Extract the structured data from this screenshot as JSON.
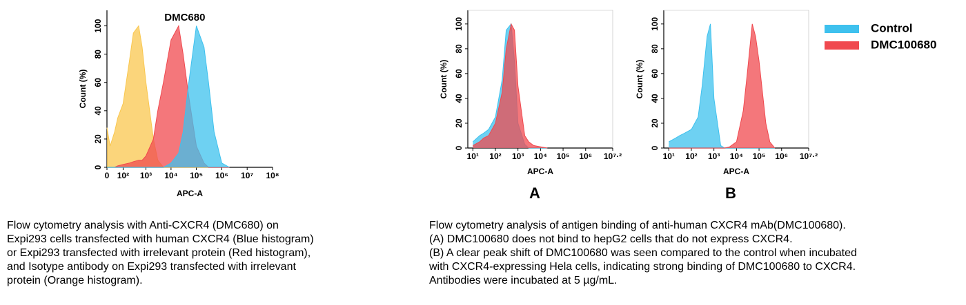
{
  "chart_data": [
    {
      "type": "area",
      "title": "DMC680",
      "xlabel": "APC-A",
      "ylabel": "Count  (%)",
      "xscale": "biexponential",
      "xlim": [
        0,
        100000000
      ],
      "ylim": [
        0,
        111
      ],
      "xticks": [
        {
          "value": 0,
          "label": "0"
        },
        {
          "value": 100,
          "label": "10²"
        },
        {
          "value": 1000,
          "label": "10³"
        },
        {
          "value": 10000,
          "label": "10⁴"
        },
        {
          "value": 100000,
          "label": "10⁵"
        },
        {
          "value": 1000000,
          "label": "10⁶"
        },
        {
          "value": 10000000,
          "label": "10⁷"
        },
        {
          "value": 100000000,
          "label": "10⁸"
        }
      ],
      "yticks": [
        0,
        20,
        40,
        60,
        80,
        100
      ],
      "x": [
        0,
        10,
        30,
        50,
        100,
        200,
        300,
        500,
        700,
        1000,
        2000,
        3000,
        5000,
        10000,
        20000,
        30000,
        50000,
        100000,
        200000,
        300000,
        500000,
        1000000,
        2000000
      ],
      "series": [
        {
          "color": "#f9c74f",
          "values": [
            28,
            15,
            25,
            35,
            45,
            75,
            95,
            100,
            85,
            60,
            20,
            5,
            0,
            0,
            0,
            0,
            0,
            0,
            0,
            0,
            0,
            0,
            0
          ]
        },
        {
          "color": "#f0494f",
          "values": [
            0,
            0,
            0,
            1,
            2,
            3,
            4,
            5,
            5,
            8,
            20,
            40,
            60,
            90,
            100,
            80,
            50,
            15,
            3,
            0,
            0,
            0,
            0
          ]
        },
        {
          "color": "#3ec1ee",
          "values": [
            0,
            0,
            0,
            0,
            0,
            0,
            0,
            0,
            0,
            0,
            0,
            0,
            0,
            3,
            10,
            25,
            60,
            100,
            85,
            60,
            25,
            3,
            0
          ]
        }
      ]
    },
    {
      "type": "area",
      "xlabel": "APC-A",
      "ylabel": "Count  (%)",
      "xscale": "log",
      "panel_label": "A",
      "xlim": [
        6,
        15848931.92
      ],
      "ylim": [
        0,
        111
      ],
      "xticks": [
        {
          "value": 10,
          "label": "10¹"
        },
        {
          "value": 100,
          "label": "10²"
        },
        {
          "value": 1000,
          "label": "10³"
        },
        {
          "value": 10000,
          "label": "10⁴"
        },
        {
          "value": 100000,
          "label": "10⁵"
        },
        {
          "value": 1000000,
          "label": "10⁶"
        },
        {
          "value": 15848931.92,
          "label": "10⁷·²"
        }
      ],
      "yticks": [
        0,
        20,
        40,
        60,
        80,
        100
      ],
      "x": [
        10,
        20,
        30,
        50,
        100,
        200,
        300,
        500,
        700,
        1000,
        2000,
        3000,
        5000,
        10000,
        20000
      ],
      "series": [
        {
          "color": "#3ec1ee",
          "values": [
            5,
            10,
            12,
            15,
            25,
            55,
            95,
            100,
            70,
            20,
            3,
            0,
            0,
            0,
            0
          ]
        },
        {
          "color": "#f0494f",
          "values": [
            2,
            5,
            8,
            10,
            20,
            45,
            80,
            100,
            95,
            50,
            10,
            5,
            2,
            1,
            0
          ]
        }
      ]
    },
    {
      "type": "area",
      "xlabel": "APC-A",
      "ylabel": "Count  (%)",
      "xscale": "log",
      "panel_label": "B",
      "legend": "right",
      "xlim": [
        6,
        15848931.92
      ],
      "ylim": [
        0,
        111
      ],
      "xticks": [
        {
          "value": 10,
          "label": "10¹"
        },
        {
          "value": 100,
          "label": "10²"
        },
        {
          "value": 1000,
          "label": "10³"
        },
        {
          "value": 10000,
          "label": "10⁴"
        },
        {
          "value": 100000,
          "label": "10⁵"
        },
        {
          "value": 1000000,
          "label": "10⁶"
        },
        {
          "value": 15848931.92,
          "label": "10⁷·²"
        }
      ],
      "yticks": [
        0,
        20,
        40,
        60,
        80,
        100
      ],
      "x": [
        10,
        20,
        30,
        50,
        100,
        200,
        300,
        500,
        700,
        1000,
        2000,
        3000,
        5000,
        10000,
        20000,
        30000,
        50000,
        70000,
        100000,
        200000,
        300000,
        500000
      ],
      "series": [
        {
          "name": "Control",
          "color": "#3ec1ee",
          "values": [
            5,
            8,
            10,
            12,
            15,
            25,
            50,
            90,
            100,
            40,
            2,
            0,
            0,
            0,
            0,
            0,
            0,
            0,
            0,
            0,
            0,
            0
          ]
        },
        {
          "name": "DMC100680",
          "color": "#f0494f",
          "values": [
            0,
            0,
            0,
            0,
            0,
            0,
            0,
            0,
            0,
            0,
            0,
            0,
            1,
            5,
            30,
            60,
            100,
            90,
            70,
            20,
            5,
            0
          ]
        }
      ]
    }
  ],
  "captions": [
    [
      "Flow cytometry analysis with Anti-CXCR4 (DMC680) on",
      "Expi293 cells transfected with human CXCR4 (Blue histogram)",
      "or Expi293 transfected with irrelevant protein (Red histogram),",
      "and Isotype antibody on Expi293 transfected with irrelevant",
      "protein (Orange histogram)."
    ],
    [
      "Flow cytometry analysis of antigen binding of anti-human CXCR4 mAb(DMC100680).",
      "(A) DMC100680 does not bind to hepG2 cells that do not express CXCR4.",
      "(B) A clear peak shift of DMC100680 was seen compared to the control when incubated",
      "with CXCR4-expressing Hela cells, indicating strong binding of DMC100680 to CXCR4.",
      "Antibodies were incubated at 5 µg/mL."
    ]
  ]
}
